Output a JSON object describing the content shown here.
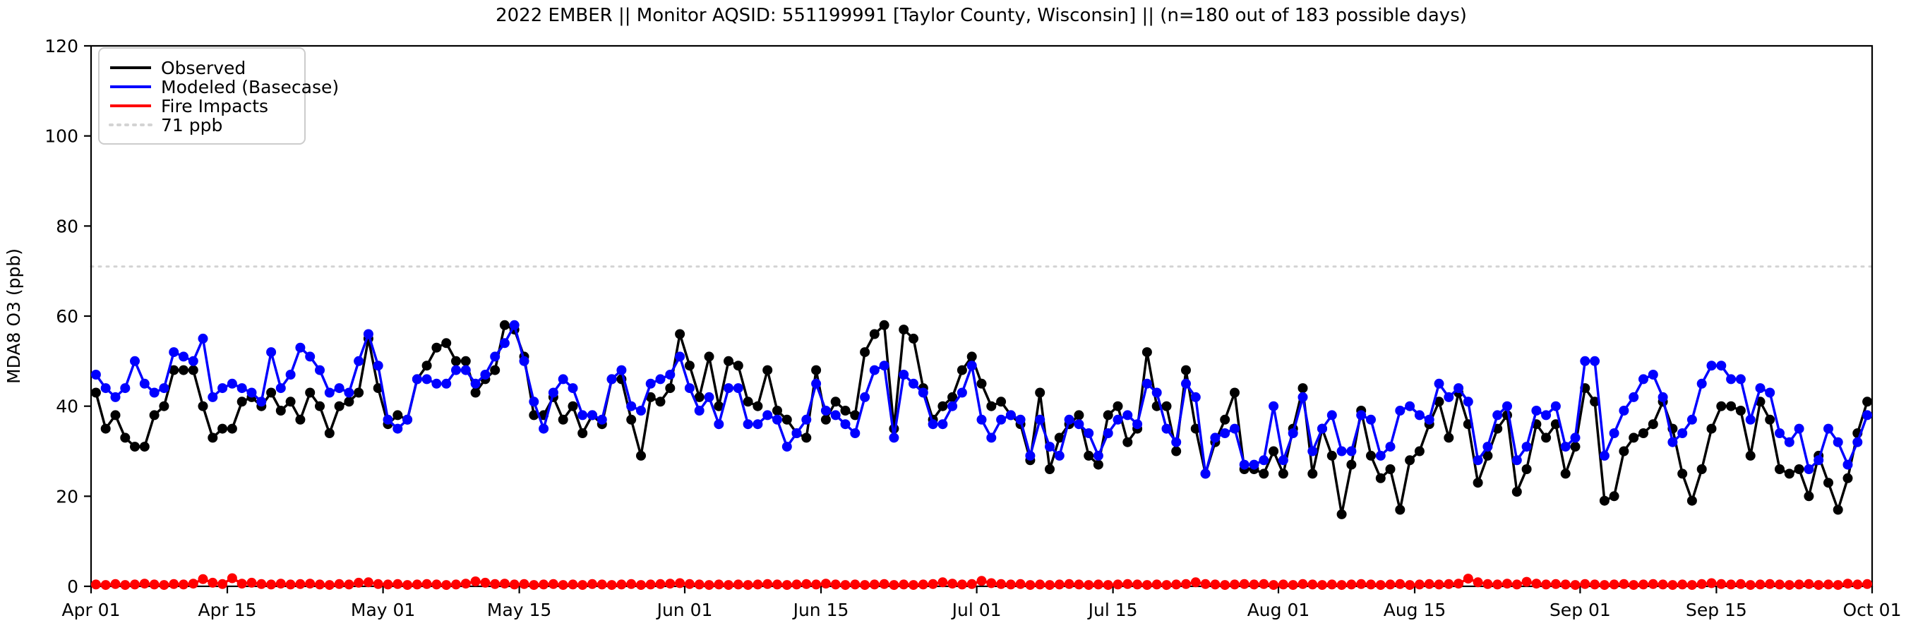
{
  "chart_data": {
    "type": "line",
    "title": "2022 EMBER || Monitor AQSID: 551199991 [Taylor County, Wisconsin] || (n=180 out of 183 possible days)",
    "ylabel": "MDA8 O3 (ppb)",
    "ylim": [
      0,
      120
    ],
    "yticks": [
      0,
      20,
      40,
      60,
      80,
      100,
      120
    ],
    "n_days": 183,
    "xticks": [
      {
        "label": "Apr 01",
        "day": 0
      },
      {
        "label": "Apr 15",
        "day": 14
      },
      {
        "label": "May 01",
        "day": 30
      },
      {
        "label": "May 15",
        "day": 44
      },
      {
        "label": "Jun 01",
        "day": 61
      },
      {
        "label": "Jun 15",
        "day": 75
      },
      {
        "label": "Jul 01",
        "day": 91
      },
      {
        "label": "Jul 15",
        "day": 105
      },
      {
        "label": "Aug 01",
        "day": 122
      },
      {
        "label": "Aug 15",
        "day": 136
      },
      {
        "label": "Sep 01",
        "day": 153
      },
      {
        "label": "Sep 15",
        "day": 167
      },
      {
        "label": "Oct 01",
        "day": 183
      }
    ],
    "grid": false,
    "legend_position": "upper left",
    "reference_line": {
      "label": "71 ppb",
      "value": 71,
      "color": "#d3d3d3",
      "style": "dotted"
    },
    "series": [
      {
        "name": "Observed",
        "color": "#000000",
        "values": [
          43,
          35,
          38,
          33,
          31,
          31,
          38,
          40,
          48,
          48,
          48,
          40,
          33,
          35,
          35,
          41,
          42,
          40,
          43,
          39,
          41,
          37,
          43,
          40,
          34,
          40,
          41,
          43,
          55,
          44,
          36,
          38,
          37,
          46,
          49,
          53,
          54,
          50,
          50,
          43,
          46,
          48,
          58,
          57,
          51,
          38,
          38,
          42,
          37,
          40,
          34,
          38,
          36,
          46,
          46,
          37,
          29,
          42,
          41,
          44,
          56,
          49,
          42,
          51,
          40,
          50,
          49,
          41,
          40,
          48,
          39,
          37,
          34,
          33,
          48,
          37,
          41,
          39,
          38,
          52,
          56,
          58,
          35,
          57,
          55,
          44,
          37,
          40,
          42,
          48,
          51,
          45,
          40,
          41,
          38,
          36,
          28,
          43,
          26,
          33,
          36,
          38,
          29,
          27,
          38,
          40,
          32,
          35,
          52,
          40,
          40,
          30,
          48,
          35,
          25,
          32,
          37,
          43,
          26,
          26,
          25,
          30,
          25,
          35,
          44,
          25,
          35,
          29,
          16,
          27,
          39,
          29,
          24,
          26,
          17,
          28,
          30,
          36,
          41,
          33,
          43,
          36,
          23,
          29,
          35,
          38,
          21,
          26,
          36,
          33,
          36,
          25,
          31,
          44,
          41,
          19,
          20,
          30,
          33,
          34,
          36,
          41,
          35,
          25,
          19,
          26,
          35,
          40,
          40,
          39,
          29,
          41,
          37,
          26,
          25,
          26,
          20,
          29,
          23,
          17,
          24,
          34,
          41
        ]
      },
      {
        "name": "Modeled (Basecase)",
        "color": "#0000ff",
        "values": [
          47,
          44,
          42,
          44,
          50,
          45,
          43,
          44,
          52,
          51,
          50,
          55,
          42,
          44,
          45,
          44,
          43,
          41,
          52,
          44,
          47,
          53,
          51,
          48,
          43,
          44,
          43,
          50,
          56,
          49,
          37,
          35,
          37,
          46,
          46,
          45,
          45,
          48,
          48,
          45,
          47,
          51,
          54,
          58,
          50,
          41,
          35,
          43,
          46,
          44,
          38,
          38,
          37,
          46,
          48,
          40,
          39,
          45,
          46,
          47,
          51,
          44,
          39,
          42,
          36,
          44,
          44,
          36,
          36,
          38,
          37,
          31,
          34,
          37,
          45,
          39,
          38,
          36,
          34,
          42,
          48,
          49,
          33,
          47,
          45,
          43,
          36,
          36,
          40,
          43,
          49,
          37,
          33,
          37,
          38,
          37,
          29,
          37,
          31,
          29,
          37,
          36,
          34,
          29,
          34,
          37,
          38,
          36,
          45,
          43,
          35,
          32,
          45,
          42,
          25,
          33,
          34,
          35,
          27,
          27,
          28,
          40,
          28,
          34,
          42,
          30,
          35,
          38,
          30,
          30,
          38,
          37,
          29,
          31,
          39,
          40,
          38,
          37,
          45,
          42,
          44,
          41,
          28,
          31,
          38,
          40,
          28,
          31,
          39,
          38,
          40,
          31,
          33,
          50,
          50,
          29,
          34,
          39,
          42,
          46,
          47,
          42,
          32,
          34,
          37,
          45,
          49,
          49,
          46,
          46,
          37,
          44,
          43,
          34,
          32,
          35,
          26,
          28,
          35,
          32,
          27,
          32,
          38
        ]
      },
      {
        "name": "Fire Impacts",
        "color": "#ff0000",
        "values": [
          0.4,
          0.3,
          0.5,
          0.3,
          0.4,
          0.6,
          0.4,
          0.3,
          0.5,
          0.4,
          0.6,
          1.6,
          0.8,
          0.5,
          1.8,
          0.6,
          0.8,
          0.5,
          0.4,
          0.6,
          0.4,
          0.5,
          0.6,
          0.4,
          0.3,
          0.5,
          0.4,
          0.8,
          0.9,
          0.5,
          0.4,
          0.5,
          0.3,
          0.4,
          0.5,
          0.4,
          0.3,
          0.4,
          0.6,
          1.1,
          0.8,
          0.5,
          0.6,
          0.4,
          0.5,
          0.3,
          0.4,
          0.5,
          0.3,
          0.4,
          0.3,
          0.5,
          0.4,
          0.3,
          0.4,
          0.5,
          0.3,
          0.4,
          0.5,
          0.6,
          0.7,
          0.5,
          0.4,
          0.3,
          0.4,
          0.3,
          0.4,
          0.3,
          0.4,
          0.5,
          0.4,
          0.3,
          0.4,
          0.5,
          0.4,
          0.6,
          0.4,
          0.3,
          0.4,
          0.3,
          0.4,
          0.5,
          0.3,
          0.4,
          0.3,
          0.4,
          0.5,
          0.9,
          0.6,
          0.4,
          0.5,
          1.2,
          0.7,
          0.5,
          0.4,
          0.5,
          0.3,
          0.4,
          0.3,
          0.4,
          0.5,
          0.4,
          0.3,
          0.4,
          0.3,
          0.4,
          0.5,
          0.4,
          0.3,
          0.4,
          0.3,
          0.4,
          0.5,
          0.9,
          0.5,
          0.4,
          0.3,
          0.4,
          0.5,
          0.4,
          0.5,
          0.3,
          0.4,
          0.3,
          0.5,
          0.4,
          0.3,
          0.4,
          0.3,
          0.4,
          0.5,
          0.4,
          0.3,
          0.4,
          0.5,
          0.3,
          0.4,
          0.5,
          0.4,
          0.5,
          0.6,
          1.7,
          0.9,
          0.5,
          0.4,
          0.6,
          0.4,
          1.0,
          0.6,
          0.4,
          0.5,
          0.4,
          0.3,
          0.5,
          0.4,
          0.3,
          0.4,
          0.5,
          0.3,
          0.4,
          0.5,
          0.4,
          0.3,
          0.4,
          0.3,
          0.5,
          0.7,
          0.5,
          0.4,
          0.5,
          0.3,
          0.4,
          0.5,
          0.4,
          0.3,
          0.4,
          0.5,
          0.3,
          0.4,
          0.3,
          0.6,
          0.4,
          0.5
        ]
      }
    ]
  }
}
